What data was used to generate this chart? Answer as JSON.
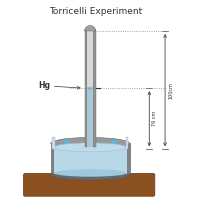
{
  "title": "Torricelli Experiment",
  "title_fontsize": 6.5,
  "label_hg": "Hg",
  "label_100cm": "100cm",
  "label_76cm": "76 cm",
  "bg_color": "#f5f5f5",
  "tube_wall_color": "#909090",
  "tube_mercury_color": "#a8c8d8",
  "tube_vacuum_color": "#d0d0d0",
  "tube_top_color": "#b0b0b0",
  "bowl_body_color": "#808080",
  "bowl_rim_color": "#999999",
  "bowl_mercury_color": "#b8d8e8",
  "glass_wall_color": "#ccddee",
  "wood_color": "#8B5020",
  "wood_edge_color": "#6B3A10",
  "arrow_cyan_color": "#55bbdd",
  "arrow_dark_color": "#444444",
  "dot_color": "#888888"
}
